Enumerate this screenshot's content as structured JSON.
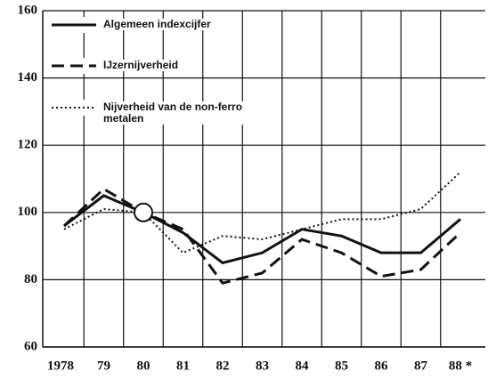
{
  "chart_data": {
    "type": "line",
    "categories": [
      "1978",
      "79",
      "80",
      "81",
      "82",
      "83",
      "84",
      "85",
      "86",
      "87",
      "88 *"
    ],
    "series": [
      {
        "name": "Algemeen indexcijfer",
        "color": "#111111",
        "dash": "solid",
        "values": [
          96,
          105,
          100,
          94,
          85,
          88,
          95,
          93,
          88,
          88,
          98
        ]
      },
      {
        "name": "IJzernijverheid",
        "color": "#111111",
        "dash": "dashed",
        "values": [
          96,
          107,
          100,
          95,
          79,
          82,
          92,
          88,
          81,
          83,
          94
        ]
      },
      {
        "name": "Nijverheid van de non-ferro metalen",
        "color": "#111111",
        "dash": "dotted",
        "values": [
          95,
          101,
          100,
          88,
          93,
          92,
          95,
          98,
          98,
          101,
          112
        ]
      }
    ],
    "ylim": [
      60,
      160
    ],
    "yticks": [
      60,
      80,
      100,
      120,
      140,
      160
    ],
    "grid": true
  }
}
